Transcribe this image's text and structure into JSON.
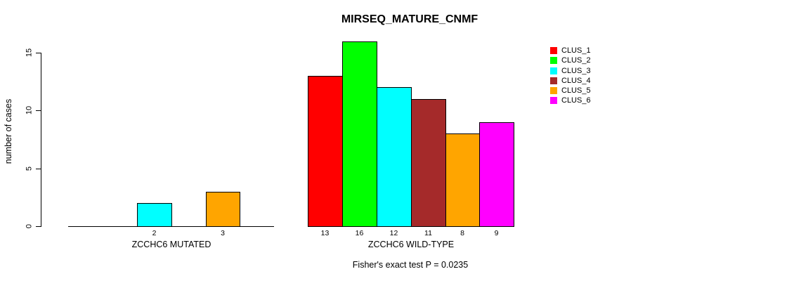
{
  "title": "MIRSEQ_MATURE_CNMF",
  "footnote": "Fisher's exact test P = 0.0235",
  "chart_data": {
    "type": "bar",
    "title": "MIRSEQ_MATURE_CNMF",
    "xlabel": "",
    "ylabel": "number of cases",
    "ylim": [
      0,
      15
    ],
    "yticks": [
      0,
      5,
      10,
      15
    ],
    "grid": false,
    "legend_position": "right",
    "categories": [
      "ZCCHC6 MUTATED",
      "ZCCHC6 WILD-TYPE"
    ],
    "series": [
      {
        "name": "CLUS_1",
        "color": "#FF0000",
        "values": [
          0,
          13
        ]
      },
      {
        "name": "CLUS_2",
        "color": "#00FF00",
        "values": [
          0,
          16
        ]
      },
      {
        "name": "CLUS_3",
        "color": "#00FFFF",
        "values": [
          2,
          12
        ]
      },
      {
        "name": "CLUS_4",
        "color": "#A52A2A",
        "values": [
          0,
          11
        ]
      },
      {
        "name": "CLUS_5",
        "color": "#FFA500",
        "values": [
          3,
          8
        ]
      },
      {
        "name": "CLUS_6",
        "color": "#FF00FF",
        "values": [
          0,
          9
        ]
      }
    ],
    "bar_value_labels": {
      "ZCCHC6 MUTATED": [
        null,
        null,
        2,
        null,
        3,
        null
      ],
      "ZCCHC6 WILD-TYPE": [
        13,
        16,
        12,
        11,
        8,
        9
      ]
    },
    "annotation": "Fisher's exact test P = 0.0235",
    "axis_color": "#000000",
    "text_color": "#000000",
    "background_color": "#FFFFFF"
  }
}
